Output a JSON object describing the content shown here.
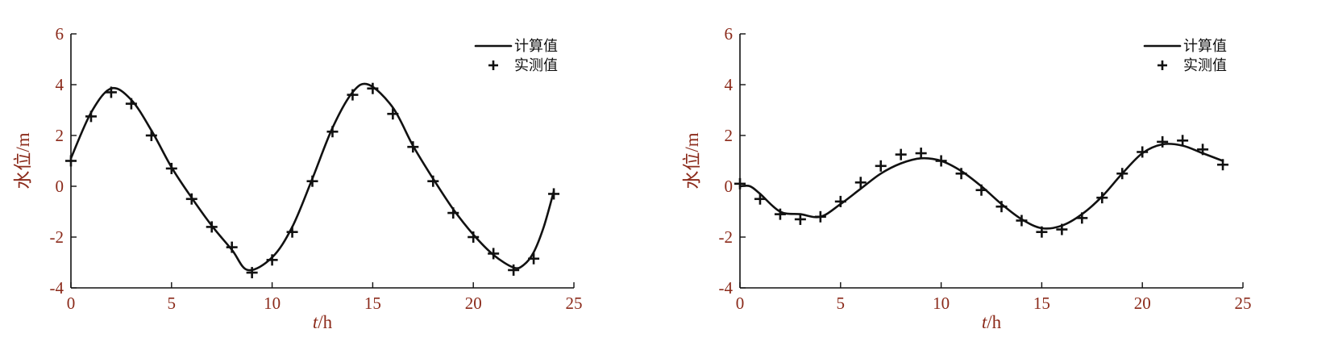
{
  "chart_data": [
    {
      "type": "line",
      "xlabel": "t/h",
      "ylabel": "水位/m",
      "xlim": [
        0,
        25
      ],
      "ylim": [
        -4,
        6
      ],
      "xticks": [
        0,
        5,
        10,
        15,
        20,
        25
      ],
      "yticks": [
        -4,
        -2,
        0,
        2,
        4,
        6
      ],
      "legend_position": "top-right",
      "grid": false,
      "series": [
        {
          "name": "计算值",
          "style": "line",
          "x": [
            0,
            1,
            2,
            3,
            4,
            5,
            6,
            7,
            8,
            8.8,
            10,
            11,
            12,
            13,
            14,
            14.8,
            16,
            17,
            18,
            19,
            20,
            21,
            22,
            22.5,
            23,
            23.5,
            24
          ],
          "y": [
            1.1,
            2.9,
            3.85,
            3.4,
            2.2,
            0.75,
            -0.45,
            -1.55,
            -2.5,
            -3.3,
            -2.8,
            -1.6,
            0.3,
            2.3,
            3.7,
            4.0,
            3.1,
            1.6,
            0.3,
            -0.9,
            -1.9,
            -2.7,
            -3.2,
            -3.1,
            -2.6,
            -1.6,
            -0.2
          ]
        },
        {
          "name": "实测值",
          "style": "plus",
          "x": [
            0,
            1,
            2,
            3,
            4,
            5,
            6,
            7,
            8,
            9,
            10,
            11,
            12,
            13,
            14,
            15,
            16,
            17,
            18,
            19,
            20,
            21,
            22,
            23,
            24
          ],
          "y": [
            1.0,
            2.75,
            3.7,
            3.25,
            2.0,
            0.7,
            -0.5,
            -1.6,
            -2.4,
            -3.4,
            -2.9,
            -1.8,
            0.2,
            2.15,
            3.6,
            3.85,
            2.85,
            1.55,
            0.2,
            -1.05,
            -2.0,
            -2.65,
            -3.3,
            -2.85,
            -0.3
          ]
        }
      ]
    },
    {
      "type": "line",
      "xlabel": "t/h",
      "ylabel": "水位/m",
      "xlim": [
        0,
        25
      ],
      "ylim": [
        -4,
        6
      ],
      "xticks": [
        0,
        5,
        10,
        15,
        20,
        25
      ],
      "yticks": [
        -4,
        -2,
        0,
        2,
        4,
        6
      ],
      "legend_position": "top-right",
      "grid": false,
      "series": [
        {
          "name": "计算值",
          "style": "line",
          "x": [
            0,
            0.5,
            1,
            2,
            3,
            4,
            5,
            6,
            7,
            8,
            9,
            10,
            11,
            12,
            13,
            14,
            15,
            16,
            17,
            18,
            19,
            20,
            21,
            22,
            23,
            24
          ],
          "y": [
            0.0,
            0.0,
            -0.3,
            -1.0,
            -1.1,
            -1.2,
            -0.7,
            -0.1,
            0.5,
            0.9,
            1.1,
            1.0,
            0.6,
            0.0,
            -0.7,
            -1.3,
            -1.65,
            -1.55,
            -1.1,
            -0.4,
            0.5,
            1.3,
            1.65,
            1.6,
            1.3,
            1.0
          ]
        },
        {
          "name": "实测值",
          "style": "plus",
          "x": [
            0,
            1,
            2,
            3,
            4,
            5,
            6,
            7,
            8,
            9,
            10,
            11,
            12,
            13,
            14,
            15,
            16,
            17,
            18,
            19,
            20,
            21,
            22,
            23,
            24
          ],
          "y": [
            0.1,
            -0.5,
            -1.1,
            -1.3,
            -1.2,
            -0.6,
            0.15,
            0.8,
            1.25,
            1.3,
            1.0,
            0.5,
            -0.15,
            -0.8,
            -1.35,
            -1.8,
            -1.7,
            -1.25,
            -0.45,
            0.5,
            1.35,
            1.75,
            1.8,
            1.45,
            0.85
          ]
        }
      ]
    }
  ]
}
